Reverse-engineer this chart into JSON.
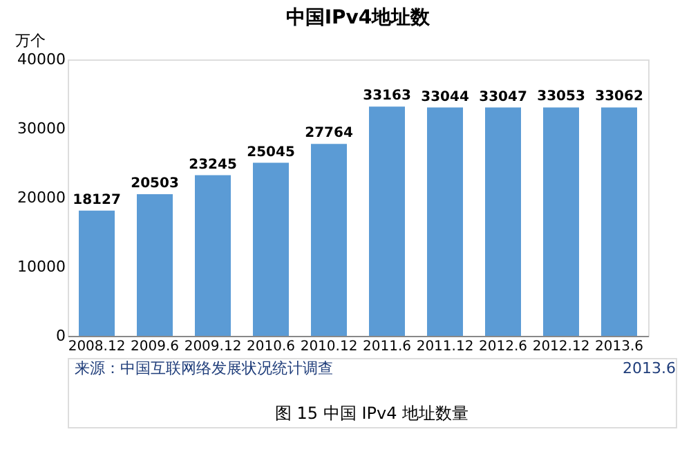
{
  "chart_data": {
    "type": "bar",
    "title": "中国IPv4地址数",
    "ylabel": "万个",
    "categories": [
      "2008.12",
      "2009.6",
      "2009.12",
      "2010.6",
      "2010.12",
      "2011.6",
      "2011.12",
      "2012.6",
      "2012.12",
      "2013.6"
    ],
    "values": [
      18127,
      20503,
      23245,
      25045,
      27764,
      33163,
      33044,
      33047,
      33053,
      33062
    ],
    "color": "#5b9bd5",
    "data_labels": true,
    "grid": false,
    "ylim": [
      0,
      40000
    ],
    "yticks": [
      0,
      10000,
      20000,
      30000,
      40000
    ],
    "annotations": [
      "来源：中国互联网络发展状况统计调查",
      "2013.6",
      "图 15 中国 IPv4 地址数量"
    ]
  }
}
